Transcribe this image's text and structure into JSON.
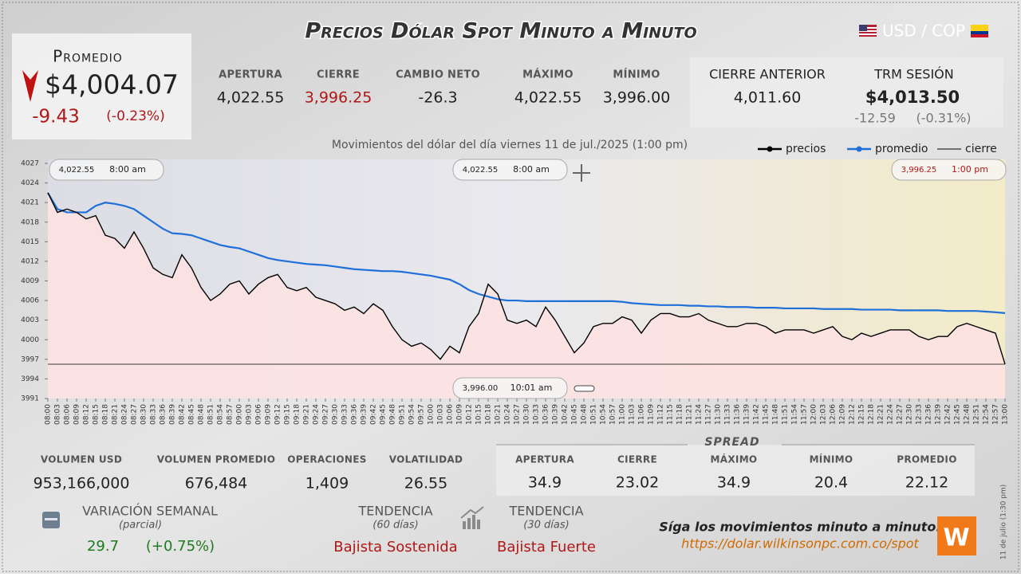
{
  "header": {
    "title": "Precios Dólar Spot Minuto a Minuto",
    "pair": "USD / COP"
  },
  "average": {
    "label": "Promedio",
    "value": "$4,004.07",
    "change": "-9.43",
    "change_pct": "(-0.23%)"
  },
  "stats": [
    {
      "label": "APERTURA",
      "value": "4,022.55"
    },
    {
      "label": "CIERRE",
      "value": "3,996.25"
    },
    {
      "label": "CAMBIO NETO",
      "value": "-26.3"
    },
    {
      "label": "MÁXIMO",
      "value": "4,022.55"
    },
    {
      "label": "MÍNIMO",
      "value": "3,996.00"
    }
  ],
  "previous_close": {
    "label": "CIERRE ANTERIOR",
    "value": "4,011.60"
  },
  "trm": {
    "label": "TRM SESIÓN",
    "value": "$4,013.50",
    "change": "-12.59",
    "change_pct": "(-0.31%)"
  },
  "volume": [
    {
      "label": "VOLUMEN USD",
      "value": "953,166,000"
    },
    {
      "label": "VOLUMEN PROMEDIO",
      "value": "676,484"
    },
    {
      "label": "OPERACIONES",
      "value": "1,409"
    },
    {
      "label": "VOLATILIDAD",
      "value": "26.55"
    }
  ],
  "spread": {
    "title": "SPREAD",
    "items": [
      {
        "label": "APERTURA",
        "value": "34.9"
      },
      {
        "label": "CIERRE",
        "value": "23.02"
      },
      {
        "label": "MÁXIMO",
        "value": "34.9"
      },
      {
        "label": "MÍNIMO",
        "value": "20.4"
      },
      {
        "label": "PROMEDIO",
        "value": "22.12"
      }
    ]
  },
  "weekly": {
    "label": "VARIACIÓN SEMANAL",
    "note": "(parcial)",
    "change": "29.7",
    "change_pct": "(+0.75%)"
  },
  "trends": [
    {
      "label": "TENDENCIA",
      "period": "(60 días)",
      "value": "Bajista Sostenida"
    },
    {
      "label": "TENDENCIA",
      "period": "(30 días)",
      "value": "Bajista Fuerte"
    }
  ],
  "footer": {
    "text": "Síga los movimientos minuto a minuto:",
    "url": "https://dolar.wilkinsonpc.com.co/spot",
    "stamp": "11 de julio (1:30 pm)",
    "logo": "W"
  },
  "chart_data": {
    "type": "line",
    "subtitle": "Movimientos del dólar del día viernes 11 de jul./2025 (1:00 pm)",
    "x": [
      "08:00",
      "08:03",
      "08:06",
      "08:09",
      "08:12",
      "08:15",
      "08:18",
      "08:21",
      "08:24",
      "08:27",
      "08:30",
      "08:33",
      "08:36",
      "08:39",
      "08:42",
      "08:45",
      "08:48",
      "08:51",
      "08:54",
      "08:57",
      "09:00",
      "09:03",
      "09:06",
      "09:09",
      "09:12",
      "09:15",
      "09:18",
      "09:21",
      "09:24",
      "09:27",
      "09:30",
      "09:33",
      "09:36",
      "09:39",
      "09:42",
      "09:45",
      "09:48",
      "09:51",
      "09:54",
      "09:57",
      "10:00",
      "10:03",
      "10:06",
      "10:09",
      "10:12",
      "10:15",
      "10:18",
      "10:21",
      "10:24",
      "10:27",
      "10:30",
      "10:33",
      "10:36",
      "10:39",
      "10:42",
      "10:45",
      "10:48",
      "10:51",
      "10:54",
      "10:57",
      "11:00",
      "11:03",
      "11:06",
      "11:09",
      "11:12",
      "11:15",
      "11:18",
      "11:21",
      "11:24",
      "11:27",
      "11:30",
      "11:33",
      "11:36",
      "11:39",
      "11:42",
      "11:45",
      "11:48",
      "11:51",
      "11:54",
      "11:57",
      "12:00",
      "12:03",
      "12:06",
      "12:09",
      "12:12",
      "12:15",
      "12:18",
      "12:21",
      "12:24",
      "12:27",
      "12:30",
      "12:33",
      "12:36",
      "12:39",
      "12:42",
      "12:45",
      "12:48",
      "12:51",
      "12:54",
      "12:57",
      "13:00"
    ],
    "series": [
      {
        "name": "precios",
        "color": "#000000",
        "values": [
          4022.5,
          4019.5,
          4020,
          4019.5,
          4018.5,
          4019,
          4016,
          4015.5,
          4014,
          4016.5,
          4014,
          4011,
          4010,
          4009.5,
          4013,
          4011,
          4008,
          4006,
          4007,
          4008.5,
          4009,
          4007,
          4008.5,
          4009.5,
          4010,
          4008,
          4007.5,
          4008,
          4006.5,
          4006,
          4005.5,
          4004.5,
          4005,
          4004,
          4005.5,
          4004.5,
          4002,
          4000,
          3999,
          3999.5,
          3998.5,
          3997,
          3999,
          3998,
          4002,
          4004,
          4008.5,
          4007,
          4003,
          4002.5,
          4003,
          4002,
          4005,
          4003,
          4000.5,
          3998,
          3999.5,
          4002,
          4002.5,
          4002.5,
          4003.5,
          4003,
          4001,
          4003,
          4004,
          4004,
          4003.5,
          4003.5,
          4004,
          4003,
          4002.5,
          4002,
          4002,
          4002.5,
          4002.5,
          4002,
          4001,
          4001.5,
          4001.5,
          4001.5,
          4001,
          4001.5,
          4002,
          4000.5,
          4000,
          4001,
          4000.5,
          4001,
          4001.5,
          4001.5,
          4001.5,
          4000.5,
          4000,
          4000.5,
          4000.5,
          4002,
          4002.5,
          4002,
          4001.5,
          4001,
          3996.25
        ]
      },
      {
        "name": "promedio",
        "color": "#1f6fd8",
        "values": [
          4022.5,
          4020,
          4019.5,
          4019.5,
          4019.5,
          4020.5,
          4021,
          4020.8,
          4020.5,
          4020,
          4019,
          4018,
          4017,
          4016.3,
          4016.2,
          4016,
          4015.5,
          4015,
          4014.5,
          4014.2,
          4014,
          4013.5,
          4013,
          4012.5,
          4012.2,
          4012,
          4011.8,
          4011.6,
          4011.5,
          4011.4,
          4011.2,
          4011,
          4010.8,
          4010.7,
          4010.6,
          4010.5,
          4010.5,
          4010.4,
          4010.2,
          4010,
          4009.8,
          4009.5,
          4009.2,
          4008.5,
          4007.6,
          4007,
          4006.6,
          4006.2,
          4006,
          4006,
          4005.9,
          4005.9,
          4005.9,
          4005.9,
          4005.9,
          4005.9,
          4005.9,
          4005.9,
          4005.9,
          4005.9,
          4005.8,
          4005.6,
          4005.5,
          4005.4,
          4005.3,
          4005.3,
          4005.3,
          4005.2,
          4005.2,
          4005.1,
          4005.1,
          4005.0,
          4005.0,
          4005.0,
          4004.9,
          4004.9,
          4004.9,
          4004.8,
          4004.8,
          4004.8,
          4004.8,
          4004.7,
          4004.7,
          4004.7,
          4004.7,
          4004.6,
          4004.6,
          4004.6,
          4004.6,
          4004.5,
          4004.5,
          4004.5,
          4004.5,
          4004.5,
          4004.4,
          4004.4,
          4004.4,
          4004.4,
          4004.3,
          4004.2,
          4004.07
        ]
      }
    ],
    "close_line": {
      "name": "cierre",
      "color": "#000000",
      "value": 3996.25
    },
    "ylim": [
      3991,
      4027
    ],
    "yticks": [
      3991,
      3994,
      3997,
      4000,
      4003,
      4006,
      4009,
      4012,
      4015,
      4018,
      4021,
      4024,
      4027
    ],
    "grid": false,
    "legend": "top-right",
    "annotations": [
      {
        "value": "4,022.55",
        "time": "8:00 am"
      },
      {
        "value": "4,022.55",
        "time": "8:00 am"
      },
      {
        "value": "3,996.25",
        "time": "1:00 pm"
      },
      {
        "value": "3,996.00",
        "time": "10:01 am"
      }
    ]
  }
}
